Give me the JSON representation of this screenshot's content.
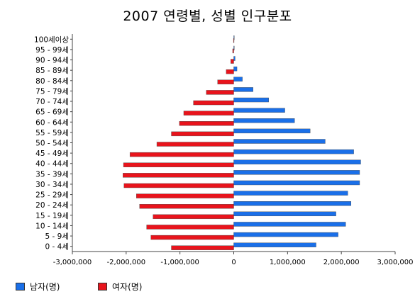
{
  "chart_data": {
    "type": "bar",
    "orientation": "horizontal",
    "layout": "population-pyramid",
    "title": "2007 연령별, 성별 인구분포",
    "categories": [
      "100세이상",
      "95 - 99세",
      "90 - 94세",
      "85 - 89세",
      "80 - 84세",
      "75 - 79세",
      "70 - 74세",
      "65 - 69세",
      "60 - 64세",
      "55 - 59세",
      "50 - 54세",
      "45 - 49세",
      "40 - 44세",
      "35 - 39세",
      "30 - 34세",
      "25 - 29세",
      "20 - 24세",
      "15 - 19세",
      "10 - 14세",
      "5 - 9세",
      "0 - 4세"
    ],
    "series": [
      {
        "name": "남자(명)",
        "color": "#1a6fe8",
        "values": [
          3000,
          10000,
          25000,
          60000,
          160000,
          360000,
          650000,
          950000,
          1130000,
          1420000,
          1700000,
          2230000,
          2360000,
          2340000,
          2340000,
          2120000,
          2180000,
          1900000,
          2080000,
          1940000,
          1530000
        ]
      },
      {
        "name": "여자(명)",
        "color": "#e8141c",
        "values": [
          -5000,
          -20000,
          -55000,
          -140000,
          -300000,
          -510000,
          -750000,
          -930000,
          -1010000,
          -1160000,
          -1430000,
          -1930000,
          -2050000,
          -2060000,
          -2040000,
          -1810000,
          -1750000,
          -1500000,
          -1620000,
          -1540000,
          -1160000
        ]
      }
    ],
    "xlim": [
      -3000000,
      3000000
    ],
    "xticks": [
      {
        "value": -3000000,
        "label": "-3,000,000"
      },
      {
        "value": -2000000,
        "label": "-2,000,000"
      },
      {
        "value": -1000000,
        "label": "-1,000,000"
      },
      {
        "value": 0,
        "label": "0"
      },
      {
        "value": 1000000,
        "label": "1,000,000"
      },
      {
        "value": 2000000,
        "label": "2,000,000"
      },
      {
        "value": 3000000,
        "label": "3,000,000"
      }
    ],
    "grid": false,
    "legend_position": "bottom-left"
  }
}
